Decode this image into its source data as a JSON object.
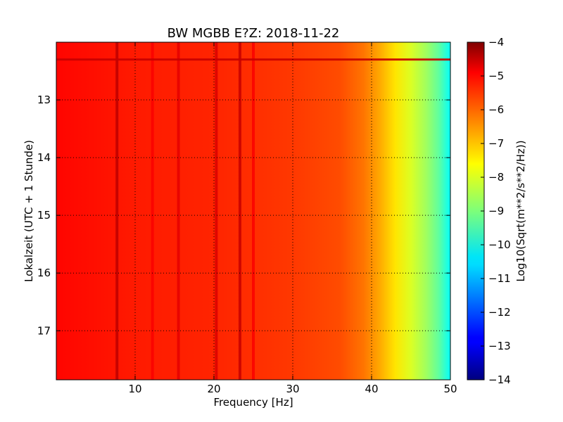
{
  "chart_data": {
    "type": "heatmap",
    "title": "BW MGBB E?Z: 2018-11-22",
    "xlabel": "Frequency [Hz]",
    "ylabel": "Lokalzeit (UTC + 1 Stunde)",
    "xlim": [
      0,
      50
    ],
    "ylim": [
      12.0,
      17.85
    ],
    "y_inverted": true,
    "x_ticks": [
      10,
      20,
      30,
      40,
      50
    ],
    "x_tick_labels": [
      "10",
      "20",
      "30",
      "40",
      "50"
    ],
    "y_ticks": [
      13,
      14,
      15,
      16,
      17
    ],
    "y_tick_labels": [
      "13",
      "14",
      "15",
      "16",
      "17"
    ],
    "grid": true,
    "colormap": "jet",
    "colorbar": {
      "label": "Log10(Sqrt(m**2/s**2/Hz))",
      "range": [
        -14,
        -4
      ],
      "ticks": [
        -4,
        -5,
        -6,
        -7,
        -8,
        -9,
        -10,
        -11,
        -12,
        -13,
        -14
      ],
      "tick_labels": [
        "−4",
        "−5",
        "−6",
        "−7",
        "−8",
        "−9",
        "−10",
        "−11",
        "−12",
        "−13",
        "−14"
      ]
    },
    "spectrum_profile": [
      {
        "frequency": 0,
        "value": -5.3
      },
      {
        "frequency": 5,
        "value": -5.4
      },
      {
        "frequency": 10,
        "value": -5.5
      },
      {
        "frequency": 20,
        "value": -5.6
      },
      {
        "frequency": 30,
        "value": -5.8
      },
      {
        "frequency": 36,
        "value": -6.0
      },
      {
        "frequency": 39,
        "value": -6.4
      },
      {
        "frequency": 41,
        "value": -6.9
      },
      {
        "frequency": 43,
        "value": -7.5
      },
      {
        "frequency": 45,
        "value": -8.1
      },
      {
        "frequency": 47,
        "value": -8.7
      },
      {
        "frequency": 48.5,
        "value": -9.3
      },
      {
        "frequency": 50,
        "value": -10.2
      }
    ],
    "spectral_lines": [
      {
        "frequency": 7.7,
        "value": -4.6
      },
      {
        "frequency": 15.5,
        "value": -5.0
      },
      {
        "frequency": 20.3,
        "value": -4.9
      },
      {
        "frequency": 23.3,
        "value": -4.7
      },
      {
        "frequency": 25.0,
        "value": -5.2
      },
      {
        "frequency": 12.2,
        "value": -5.2
      }
    ],
    "horizontal_band": {
      "time": 12.3,
      "value": -4.7
    }
  }
}
